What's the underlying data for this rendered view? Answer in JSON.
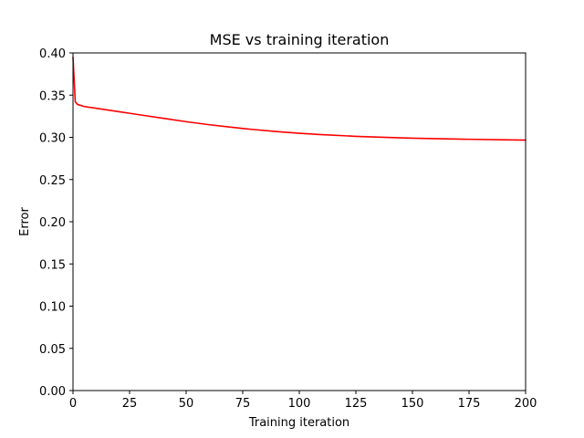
{
  "chart_data": {
    "type": "line",
    "title": "MSE vs training iteration",
    "xlabel": "Training iteration",
    "ylabel": "Error",
    "xlim": [
      0,
      200
    ],
    "ylim": [
      0,
      0.4
    ],
    "xticks": [
      0,
      25,
      50,
      75,
      100,
      125,
      150,
      175,
      200
    ],
    "yticks": [
      0.0,
      0.05,
      0.1,
      0.15,
      0.2,
      0.25,
      0.3,
      0.35,
      0.4
    ],
    "xtick_labels": [
      "0",
      "25",
      "50",
      "75",
      "100",
      "125",
      "150",
      "175",
      "200"
    ],
    "ytick_labels": [
      "0.00",
      "0.05",
      "0.10",
      "0.15",
      "0.20",
      "0.25",
      "0.30",
      "0.35",
      "0.40"
    ],
    "grid": false,
    "series": [
      {
        "color": "#ff0000",
        "x": [
          0,
          1,
          2,
          5,
          10,
          15,
          20,
          25,
          30,
          40,
          50,
          60,
          70,
          75,
          80,
          90,
          100,
          110,
          125,
          140,
          150,
          160,
          175,
          190,
          200
        ],
        "y": [
          0.395,
          0.342,
          0.339,
          0.3365,
          0.3345,
          0.3325,
          0.3305,
          0.3285,
          0.3265,
          0.3225,
          0.3185,
          0.315,
          0.312,
          0.3105,
          0.3092,
          0.3068,
          0.3048,
          0.3032,
          0.3012,
          0.2998,
          0.299,
          0.2984,
          0.2977,
          0.2971,
          0.2967
        ]
      }
    ]
  }
}
